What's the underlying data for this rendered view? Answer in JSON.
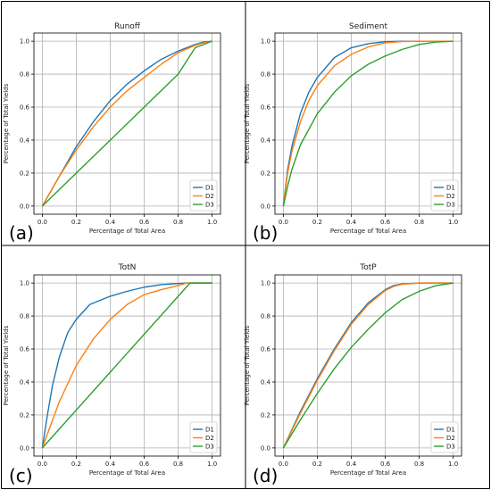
{
  "chart_data": [
    {
      "type": "line",
      "panel_label": "(a)",
      "title": "Runoff",
      "xlabel": "Percentage of Total Area",
      "ylabel": "Percentage of Total Yields",
      "xlim": [
        0,
        1
      ],
      "ylim": [
        0,
        1
      ],
      "x_ticks": [
        "0.0",
        "0.2",
        "0.4",
        "0.6",
        "0.8",
        "1.0"
      ],
      "y_ticks": [
        "0.0",
        "0.2",
        "0.4",
        "0.6",
        "0.8",
        "1.0"
      ],
      "grid": true,
      "legend_position": "bottom-right",
      "series": [
        {
          "name": "D1",
          "color": "#1f77b4",
          "x": [
            0,
            0.1,
            0.2,
            0.3,
            0.4,
            0.5,
            0.6,
            0.7,
            0.8,
            0.9,
            0.95,
            1.0
          ],
          "y": [
            0,
            0.18,
            0.36,
            0.51,
            0.64,
            0.74,
            0.82,
            0.89,
            0.94,
            0.98,
            0.995,
            1.0
          ]
        },
        {
          "name": "D2",
          "color": "#ff7f0e",
          "x": [
            0,
            0.1,
            0.2,
            0.3,
            0.4,
            0.5,
            0.6,
            0.7,
            0.8,
            0.9,
            0.95,
            1.0
          ],
          "y": [
            0,
            0.18,
            0.34,
            0.48,
            0.6,
            0.7,
            0.78,
            0.86,
            0.93,
            0.975,
            0.99,
            1.0
          ]
        },
        {
          "name": "D3",
          "color": "#2ca02c",
          "x": [
            0,
            0.2,
            0.4,
            0.6,
            0.8,
            0.9,
            1.0
          ],
          "y": [
            0,
            0.2,
            0.4,
            0.6,
            0.8,
            0.96,
            1.0
          ]
        }
      ]
    },
    {
      "type": "line",
      "panel_label": "(b)",
      "title": "Sediment",
      "xlabel": "Percentage of Total Area",
      "ylabel": "Percentage of Total Yields",
      "xlim": [
        0,
        1
      ],
      "ylim": [
        0,
        1
      ],
      "x_ticks": [
        "0.0",
        "0.2",
        "0.4",
        "0.6",
        "0.8",
        "1.0"
      ],
      "y_ticks": [
        "0.0",
        "0.2",
        "0.4",
        "0.6",
        "0.8",
        "1.0"
      ],
      "grid": true,
      "legend_position": "bottom-right",
      "series": [
        {
          "name": "D1",
          "color": "#1f77b4",
          "x": [
            0,
            0.025,
            0.05,
            0.1,
            0.15,
            0.2,
            0.3,
            0.4,
            0.5,
            0.6,
            0.7,
            0.8,
            0.9,
            1.0
          ],
          "y": [
            0,
            0.22,
            0.36,
            0.56,
            0.69,
            0.78,
            0.9,
            0.96,
            0.985,
            0.997,
            1.0,
            1.0,
            1.0,
            1.0
          ]
        },
        {
          "name": "D2",
          "color": "#ff7f0e",
          "x": [
            0,
            0.025,
            0.05,
            0.1,
            0.15,
            0.2,
            0.3,
            0.4,
            0.5,
            0.6,
            0.7,
            0.8,
            0.9,
            1.0
          ],
          "y": [
            0,
            0.2,
            0.33,
            0.51,
            0.64,
            0.73,
            0.85,
            0.92,
            0.965,
            0.99,
            0.998,
            1.0,
            1.0,
            1.0
          ]
        },
        {
          "name": "D3",
          "color": "#2ca02c",
          "x": [
            0,
            0.025,
            0.05,
            0.1,
            0.2,
            0.3,
            0.4,
            0.5,
            0.6,
            0.7,
            0.8,
            0.9,
            1.0
          ],
          "y": [
            0,
            0.12,
            0.22,
            0.37,
            0.56,
            0.69,
            0.79,
            0.86,
            0.91,
            0.95,
            0.98,
            0.995,
            1.0
          ]
        }
      ]
    },
    {
      "type": "line",
      "panel_label": "(c)",
      "title": "TotN",
      "xlabel": "Percentage of Total Area",
      "ylabel": "Percentage of Total Yields",
      "xlim": [
        0,
        1
      ],
      "ylim": [
        0,
        1
      ],
      "x_ticks": [
        "0.0",
        "0.2",
        "0.4",
        "0.6",
        "0.8",
        "1.0"
      ],
      "y_ticks": [
        "0.0",
        "0.2",
        "0.4",
        "0.6",
        "0.8",
        "1.0"
      ],
      "grid": true,
      "legend_position": "bottom-right",
      "series": [
        {
          "name": "D1",
          "color": "#1f77b4",
          "x": [
            0,
            0.03,
            0.06,
            0.1,
            0.15,
            0.2,
            0.28,
            0.4,
            0.5,
            0.6,
            0.7,
            0.8,
            0.85,
            1.0
          ],
          "y": [
            0,
            0.2,
            0.38,
            0.55,
            0.7,
            0.78,
            0.87,
            0.92,
            0.95,
            0.975,
            0.99,
            0.997,
            1.0,
            1.0
          ]
        },
        {
          "name": "D2",
          "color": "#ff7f0e",
          "x": [
            0,
            0.1,
            0.2,
            0.3,
            0.4,
            0.5,
            0.6,
            0.7,
            0.8,
            0.85,
            1.0
          ],
          "y": [
            0,
            0.28,
            0.5,
            0.66,
            0.78,
            0.87,
            0.93,
            0.96,
            0.985,
            1.0,
            1.0
          ]
        },
        {
          "name": "D3",
          "color": "#2ca02c",
          "x": [
            0,
            0.87,
            1.0
          ],
          "y": [
            0,
            1.0,
            1.0
          ]
        }
      ]
    },
    {
      "type": "line",
      "panel_label": "(d)",
      "title": "TotP",
      "xlabel": "Percentage of Total Area",
      "ylabel": "Percentage of Total Yields",
      "xlim": [
        0,
        1
      ],
      "ylim": [
        0,
        1
      ],
      "x_ticks": [
        "0.0",
        "0.2",
        "0.4",
        "0.6",
        "0.8",
        "1.0"
      ],
      "y_ticks": [
        "0.0",
        "0.2",
        "0.4",
        "0.6",
        "0.8",
        "1.0"
      ],
      "grid": true,
      "legend_position": "bottom-right",
      "series": [
        {
          "name": "D1",
          "color": "#1f77b4",
          "x": [
            0,
            0.1,
            0.2,
            0.3,
            0.4,
            0.5,
            0.6,
            0.65,
            0.7,
            0.8,
            0.9,
            1.0
          ],
          "y": [
            0,
            0.22,
            0.42,
            0.6,
            0.76,
            0.88,
            0.96,
            0.985,
            0.995,
            1.0,
            1.0,
            1.0
          ]
        },
        {
          "name": "D2",
          "color": "#ff7f0e",
          "x": [
            0,
            0.1,
            0.2,
            0.3,
            0.4,
            0.5,
            0.6,
            0.65,
            0.7,
            0.8,
            0.9,
            1.0
          ],
          "y": [
            0,
            0.21,
            0.41,
            0.59,
            0.75,
            0.87,
            0.955,
            0.98,
            0.993,
            1.0,
            1.0,
            1.0
          ]
        },
        {
          "name": "D3",
          "color": "#2ca02c",
          "x": [
            0,
            0.1,
            0.2,
            0.3,
            0.4,
            0.5,
            0.6,
            0.7,
            0.8,
            0.9,
            1.0
          ],
          "y": [
            0,
            0.17,
            0.33,
            0.48,
            0.61,
            0.72,
            0.82,
            0.9,
            0.95,
            0.985,
            1.0
          ]
        }
      ]
    }
  ]
}
